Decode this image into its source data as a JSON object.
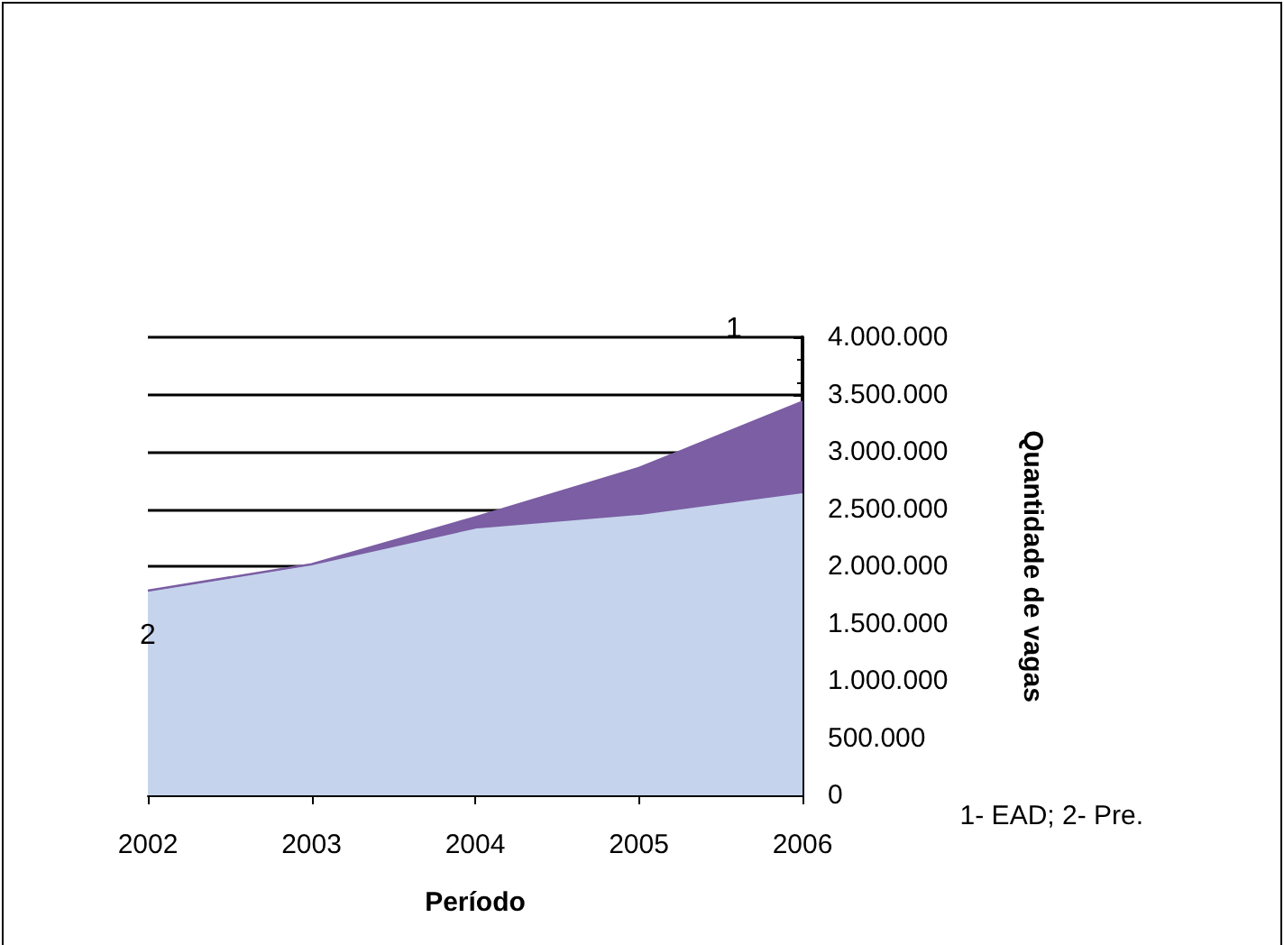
{
  "chart_data": {
    "type": "area",
    "stacked": true,
    "categories": [
      "2002",
      "2003",
      "2004",
      "2005",
      "2006"
    ],
    "series": [
      {
        "name": "2",
        "color": "#c5d4ec",
        "values": [
          1770000,
          2000000,
          2320000,
          2440000,
          2630000
        ]
      },
      {
        "name": "1",
        "color": "#7b5ea3",
        "values": [
          20000,
          20000,
          110000,
          420000,
          810000
        ]
      }
    ],
    "xlabel": "Período",
    "ylabel": "Quantidade de vagas",
    "ylim": [
      0,
      4000000
    ],
    "yticks": [
      {
        "value": 0,
        "label": "0"
      },
      {
        "value": 500000,
        "label": "500.000"
      },
      {
        "value": 1000000,
        "label": "1.000.000"
      },
      {
        "value": 1500000,
        "label": "1.500.000"
      },
      {
        "value": 2000000,
        "label": "2.000.000"
      },
      {
        "value": 2500000,
        "label": "2.500.000"
      },
      {
        "value": 3000000,
        "label": "3.000.000"
      },
      {
        "value": 3500000,
        "label": "3.500.000"
      },
      {
        "value": 4000000,
        "label": "4.000.000"
      }
    ],
    "grid": "y",
    "annotations": [
      "1- EAD; 2- Pre."
    ]
  }
}
